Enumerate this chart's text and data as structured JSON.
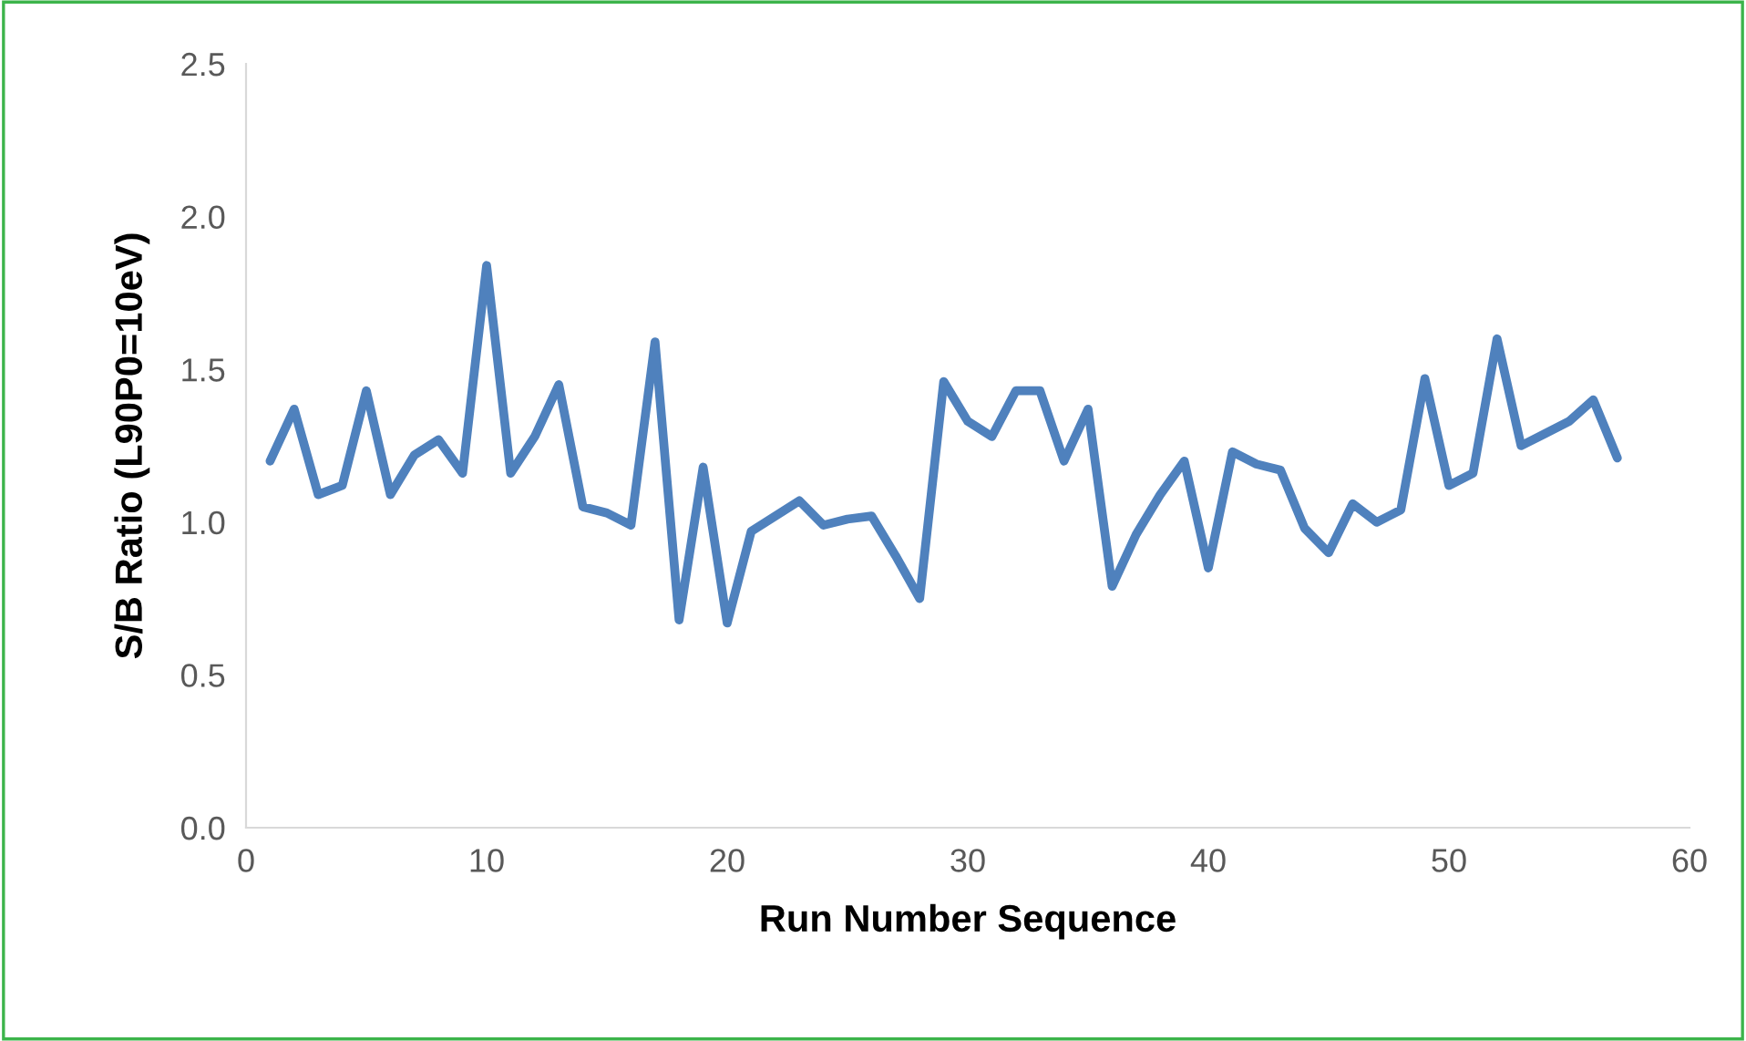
{
  "chart_data": {
    "type": "line",
    "xlabel": "Run Number Sequence",
    "ylabel": "S/B Ratio (L90P0=10eV)",
    "x": [
      1,
      2,
      3,
      4,
      5,
      6,
      7,
      8,
      9,
      10,
      11,
      12,
      13,
      14,
      15,
      16,
      17,
      18,
      19,
      20,
      21,
      22,
      23,
      24,
      25,
      26,
      27,
      28,
      29,
      30,
      31,
      32,
      33,
      34,
      35,
      36,
      37,
      38,
      39,
      40,
      41,
      42,
      43,
      44,
      45,
      46,
      47,
      48,
      49,
      50,
      51,
      52,
      53,
      54,
      55,
      56,
      57
    ],
    "series": [
      {
        "color": "#4f81bd",
        "values": [
          1.2,
          1.37,
          1.09,
          1.12,
          1.43,
          1.09,
          1.22,
          1.27,
          1.16,
          1.84,
          1.16,
          1.28,
          1.45,
          1.05,
          1.03,
          0.99,
          1.59,
          0.68,
          1.18,
          0.67,
          0.97,
          1.02,
          1.07,
          0.99,
          1.01,
          1.02,
          0.89,
          0.75,
          1.46,
          1.33,
          1.28,
          1.43,
          1.43,
          1.2,
          1.37,
          0.79,
          0.96,
          1.09,
          1.2,
          0.85,
          1.23,
          1.19,
          1.17,
          0.98,
          0.9,
          1.06,
          1.0,
          1.04,
          1.47,
          1.12,
          1.16,
          1.6,
          1.25,
          1.29,
          1.33,
          1.4,
          1.21
        ]
      }
    ],
    "xlim": [
      0,
      60
    ],
    "xticks": [
      0,
      10,
      20,
      30,
      40,
      50,
      60
    ],
    "ylim": [
      0,
      2.5
    ],
    "yticks": [
      {
        "value": 0,
        "label": "0.0"
      },
      {
        "value": 0.5,
        "label": "0.5"
      },
      {
        "value": 1,
        "label": "1.0"
      },
      {
        "value": 1.5,
        "label": "1.5"
      },
      {
        "value": 2,
        "label": "2.0"
      },
      {
        "value": 2.5,
        "label": "2.5"
      }
    ],
    "grid": false,
    "legend": false,
    "marker": "none",
    "line_style": "solid"
  }
}
